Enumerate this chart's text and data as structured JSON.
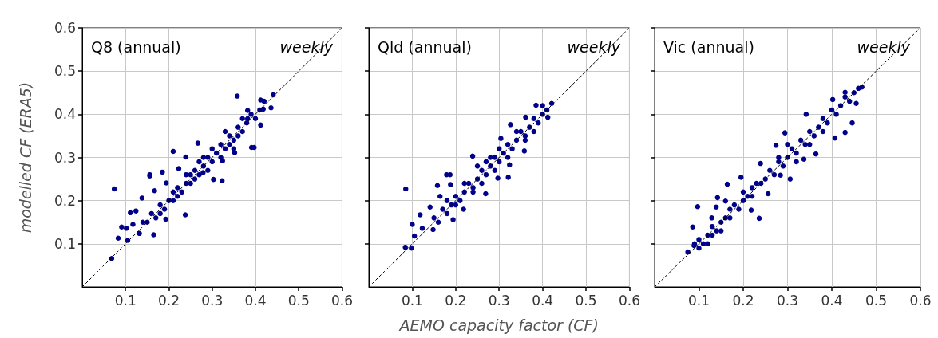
{
  "chart_data": [
    {
      "type": "scatter",
      "title": "Q8 (annual)",
      "subtitle": "weekly",
      "ylabel": "modelled CF (ERA5)",
      "xlim": [
        0,
        0.6
      ],
      "ylim": [
        0,
        0.6
      ],
      "xticks": [
        0.1,
        0.2,
        0.3,
        0.4,
        0.5,
        0.6
      ],
      "yticks": [
        0.1,
        0.2,
        0.3,
        0.4,
        0.5,
        0.6
      ],
      "grid": true,
      "marker": "circle",
      "series": [
        {
          "color": "#00008b",
          "x": [
            0.068,
            0.074,
            0.083,
            0.091,
            0.102,
            0.105,
            0.111,
            0.117,
            0.124,
            0.132,
            0.138,
            0.156,
            0.156,
            0.165,
            0.167,
            0.185,
            0.193,
            0.194,
            0.21,
            0.223,
            0.238,
            0.239,
            0.267,
            0.279,
            0.303,
            0.323,
            0.324,
            0.358,
            0.352,
            0.391,
            0.397,
            0.382,
            0.412,
            0.418,
            0.441,
            0.436,
            0.382,
            0.412,
            0.15,
            0.16,
            0.17,
            0.18,
            0.19,
            0.2,
            0.21,
            0.21,
            0.22,
            0.23,
            0.24,
            0.25,
            0.25,
            0.26,
            0.27,
            0.28,
            0.29,
            0.3,
            0.31,
            0.32,
            0.33,
            0.34,
            0.35,
            0.36,
            0.37,
            0.38,
            0.39,
            0.4,
            0.41,
            0.42,
            0.22,
            0.24,
            0.26,
            0.28,
            0.3,
            0.32,
            0.34,
            0.36,
            0.18,
            0.14,
            0.27,
            0.29,
            0.33,
            0.35,
            0.37
          ],
          "values": [
            0.066,
            0.227,
            0.113,
            0.139,
            0.136,
            0.108,
            0.172,
            0.145,
            0.176,
            0.124,
            0.206,
            0.257,
            0.26,
            0.121,
            0.223,
            0.266,
            0.157,
            0.241,
            0.314,
            0.274,
            0.167,
            0.301,
            0.333,
            0.265,
            0.249,
            0.246,
            0.292,
            0.442,
            0.311,
            0.323,
            0.323,
            0.409,
            0.433,
            0.412,
            0.445,
            0.415,
            0.39,
            0.375,
            0.15,
            0.17,
            0.16,
            0.19,
            0.18,
            0.2,
            0.2,
            0.22,
            0.23,
            0.22,
            0.24,
            0.24,
            0.26,
            0.27,
            0.26,
            0.28,
            0.3,
            0.29,
            0.31,
            0.33,
            0.32,
            0.35,
            0.34,
            0.37,
            0.36,
            0.38,
            0.4,
            0.39,
            0.41,
            0.43,
            0.21,
            0.26,
            0.25,
            0.3,
            0.32,
            0.3,
            0.33,
            0.35,
            0.17,
            0.15,
            0.29,
            0.27,
            0.36,
            0.32,
            0.39
          ]
        },
        {
          "type": "line",
          "color": "#000000",
          "line_style": "dashed",
          "marker": "none",
          "x": [
            0,
            0.6
          ],
          "values": [
            0,
            0.6
          ]
        }
      ]
    },
    {
      "type": "scatter",
      "title": "Qld (annual)",
      "subtitle": "weekly",
      "xlabel": "AEMO capacity factor (CF)",
      "xlim": [
        0,
        0.6
      ],
      "ylim": [
        0,
        0.6
      ],
      "xticks": [
        0.1,
        0.2,
        0.3,
        0.4,
        0.5,
        0.6
      ],
      "yticks": [
        0.1,
        0.2,
        0.3,
        0.4,
        0.5,
        0.6
      ],
      "grid": true,
      "marker": "circle",
      "tick_labels": "x",
      "series": [
        {
          "color": "#00008b",
          "x": [
            0.085,
            0.084,
            0.098,
            0.1,
            0.105,
            0.118,
            0.123,
            0.141,
            0.148,
            0.158,
            0.164,
            0.179,
            0.187,
            0.188,
            0.194,
            0.218,
            0.239,
            0.269,
            0.297,
            0.321,
            0.326,
            0.324,
            0.304,
            0.358,
            0.385,
            0.421,
            0.412,
            0.361,
            0.15,
            0.16,
            0.17,
            0.18,
            0.19,
            0.2,
            0.21,
            0.22,
            0.23,
            0.24,
            0.25,
            0.26,
            0.27,
            0.28,
            0.29,
            0.3,
            0.31,
            0.32,
            0.33,
            0.34,
            0.35,
            0.36,
            0.37,
            0.38,
            0.39,
            0.4,
            0.41,
            0.22,
            0.24,
            0.26,
            0.28,
            0.3,
            0.32,
            0.34,
            0.36,
            0.2,
            0.18,
            0.25,
            0.27,
            0.29,
            0.38,
            0.4
          ],
          "values": [
            0.227,
            0.092,
            0.09,
            0.145,
            0.118,
            0.167,
            0.136,
            0.185,
            0.133,
            0.235,
            0.21,
            0.26,
            0.26,
            0.237,
            0.156,
            0.18,
            0.303,
            0.216,
            0.252,
            0.254,
            0.376,
            0.283,
            0.344,
            0.315,
            0.421,
            0.425,
            0.393,
            0.393,
            0.16,
            0.15,
            0.18,
            0.17,
            0.19,
            0.21,
            0.2,
            0.22,
            0.24,
            0.23,
            0.25,
            0.27,
            0.26,
            0.28,
            0.3,
            0.29,
            0.31,
            0.33,
            0.32,
            0.34,
            0.36,
            0.35,
            0.37,
            0.39,
            0.38,
            0.4,
            0.41,
            0.24,
            0.22,
            0.24,
            0.3,
            0.32,
            0.3,
            0.36,
            0.34,
            0.19,
            0.2,
            0.28,
            0.29,
            0.27,
            0.36,
            0.42
          ]
        },
        {
          "type": "line",
          "color": "#000000",
          "line_style": "dashed",
          "marker": "none",
          "x": [
            0,
            0.6
          ],
          "values": [
            0,
            0.6
          ]
        }
      ]
    },
    {
      "type": "scatter",
      "title": "Vic (annual)",
      "subtitle": "weekly",
      "xlim": [
        0,
        0.6
      ],
      "ylim": [
        0,
        0.6
      ],
      "xticks": [
        0.1,
        0.2,
        0.3,
        0.4,
        0.5,
        0.6
      ],
      "yticks": [
        0.1,
        0.2,
        0.3,
        0.4,
        0.5,
        0.6
      ],
      "grid": true,
      "marker": "circle",
      "tick_labels": "x",
      "series": [
        {
          "color": "#00008b",
          "x": [
            0.075,
            0.086,
            0.097,
            0.089,
            0.142,
            0.164,
            0.16,
            0.139,
            0.129,
            0.236,
            0.218,
            0.195,
            0.239,
            0.274,
            0.294,
            0.256,
            0.284,
            0.306,
            0.342,
            0.364,
            0.337,
            0.402,
            0.43,
            0.446,
            0.43,
            0.407,
            0.468,
            0.455,
            0.09,
            0.1,
            0.1,
            0.11,
            0.12,
            0.13,
            0.13,
            0.14,
            0.15,
            0.16,
            0.17,
            0.17,
            0.18,
            0.19,
            0.2,
            0.21,
            0.22,
            0.22,
            0.23,
            0.24,
            0.25,
            0.26,
            0.27,
            0.28,
            0.29,
            0.3,
            0.31,
            0.32,
            0.33,
            0.34,
            0.35,
            0.36,
            0.37,
            0.38,
            0.39,
            0.4,
            0.41,
            0.42,
            0.43,
            0.44,
            0.45,
            0.46,
            0.3,
            0.32,
            0.35,
            0.38,
            0.28,
            0.2,
            0.15,
            0.12
          ],
          "values": [
            0.081,
            0.139,
            0.186,
            0.096,
            0.207,
            0.238,
            0.199,
            0.185,
            0.16,
            0.159,
            0.178,
            0.254,
            0.286,
            0.328,
            0.357,
            0.216,
            0.259,
            0.25,
            0.4,
            0.308,
            0.296,
            0.434,
            0.451,
            0.38,
            0.358,
            0.345,
            0.463,
            0.425,
            0.1,
            0.09,
            0.11,
            0.1,
            0.12,
            0.12,
            0.14,
            0.13,
            0.15,
            0.16,
            0.16,
            0.18,
            0.19,
            0.18,
            0.2,
            0.21,
            0.21,
            0.23,
            0.24,
            0.24,
            0.25,
            0.27,
            0.26,
            0.29,
            0.28,
            0.3,
            0.32,
            0.31,
            0.34,
            0.33,
            0.36,
            0.35,
            0.37,
            0.39,
            0.38,
            0.41,
            0.4,
            0.42,
            0.44,
            0.43,
            0.45,
            0.46,
            0.33,
            0.29,
            0.33,
            0.36,
            0.3,
            0.22,
            0.13,
            0.1
          ]
        },
        {
          "type": "line",
          "color": "#000000",
          "line_style": "dashed",
          "marker": "none",
          "x": [
            0,
            0.6
          ],
          "values": [
            0,
            0.6
          ]
        }
      ]
    }
  ]
}
